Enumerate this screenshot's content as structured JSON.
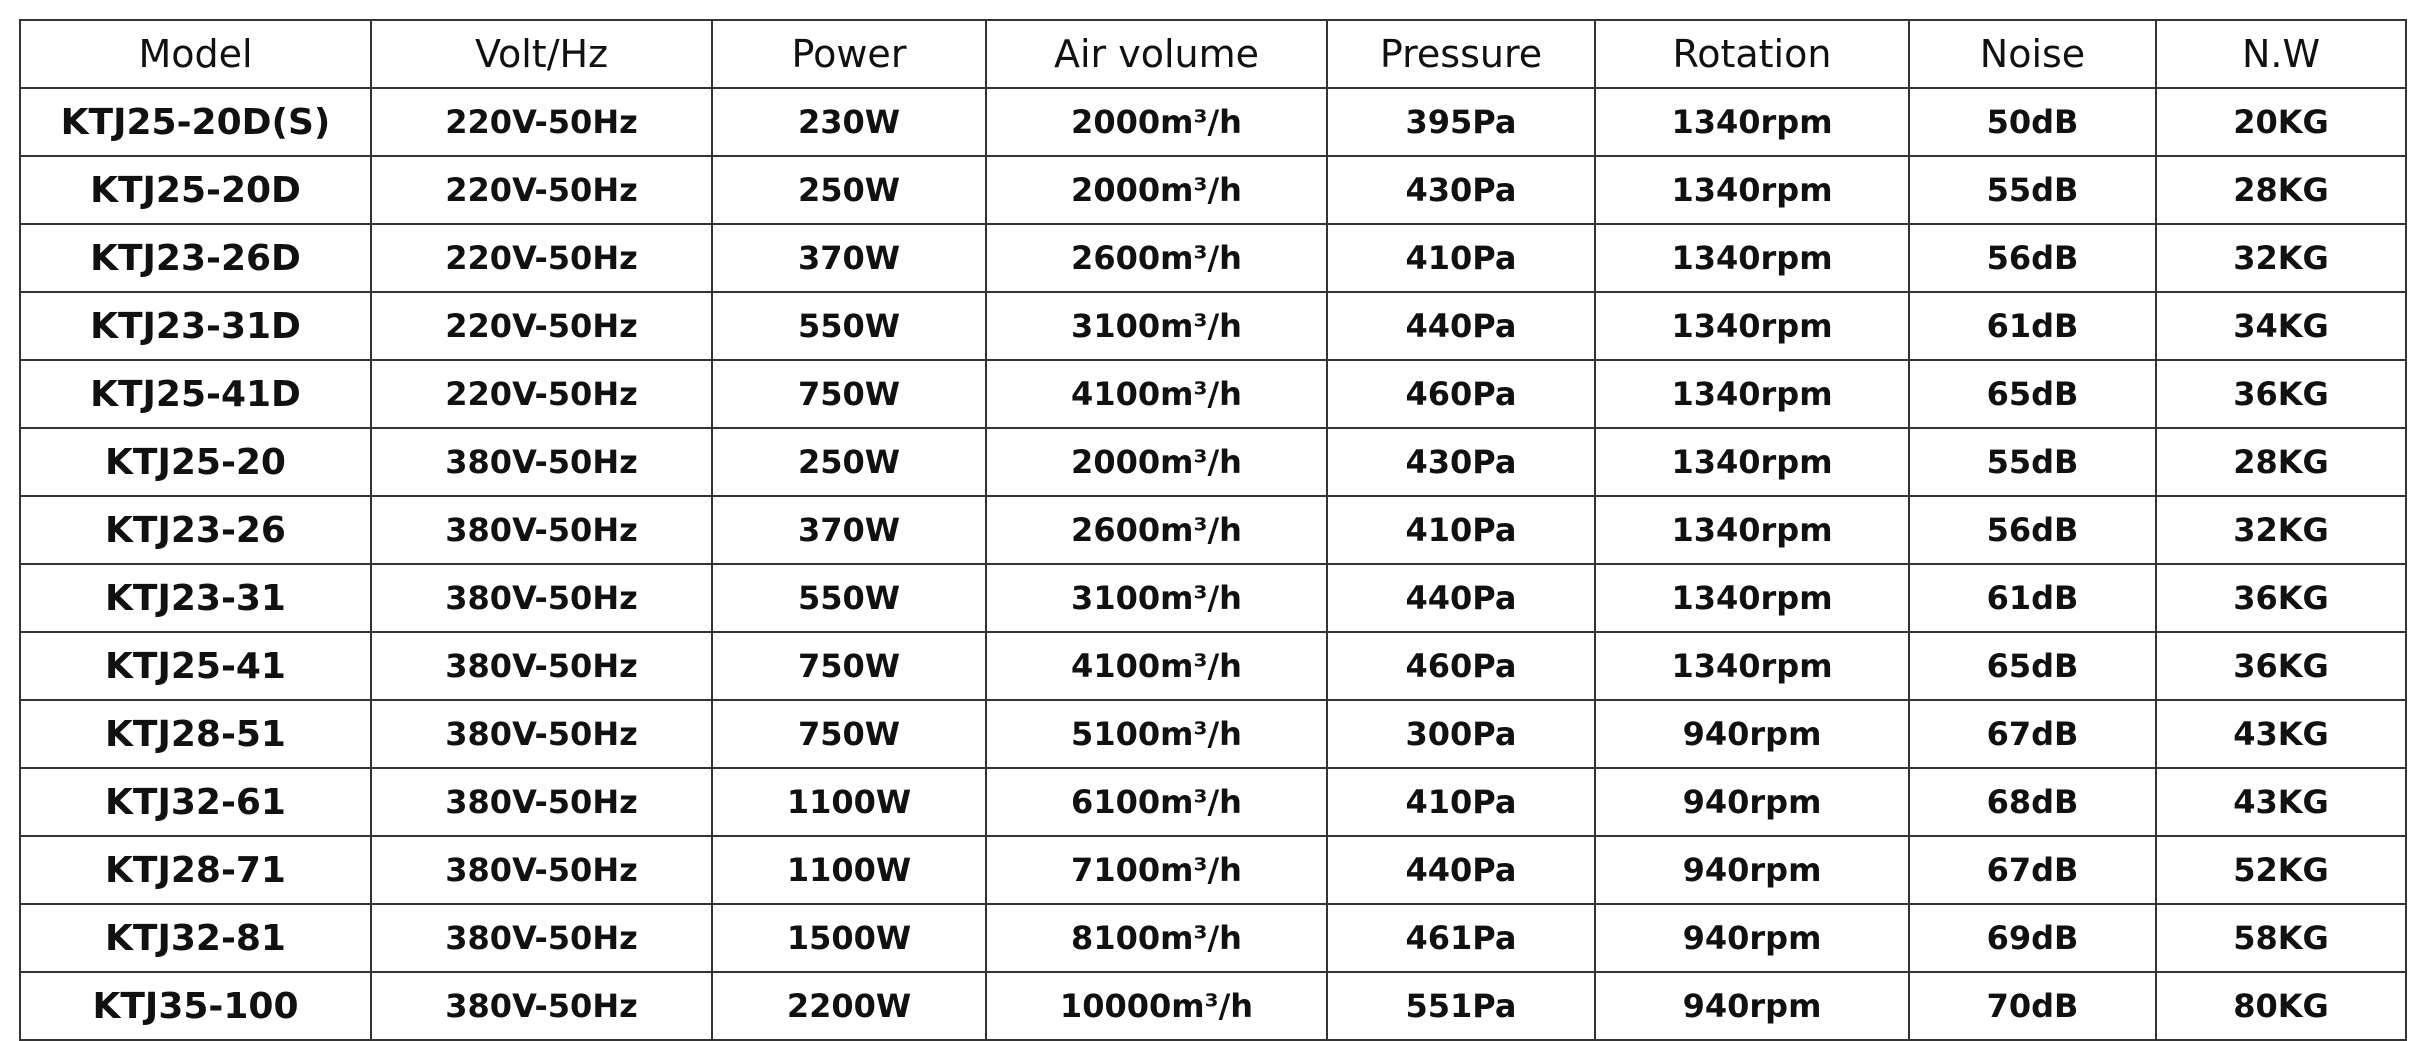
{
  "table": {
    "header": [
      "Model",
      "Volt/Hz",
      "Power",
      "Air volume",
      "Pressure",
      "Rotation",
      "Noise",
      "N.W"
    ],
    "rows": [
      [
        "KTJ25-20D(S)",
        "220V-50Hz",
        "230W",
        "2000m³/h",
        "395Pa",
        "1340rpm",
        "50dB",
        "20KG"
      ],
      [
        "KTJ25-20D",
        "220V-50Hz",
        "250W",
        "2000m³/h",
        "430Pa",
        "1340rpm",
        "55dB",
        "28KG"
      ],
      [
        "KTJ23-26D",
        "220V-50Hz",
        "370W",
        "2600m³/h",
        "410Pa",
        "1340rpm",
        "56dB",
        "32KG"
      ],
      [
        "KTJ23-31D",
        "220V-50Hz",
        "550W",
        "3100m³/h",
        "440Pa",
        "1340rpm",
        "61dB",
        "34KG"
      ],
      [
        "KTJ25-41D",
        "220V-50Hz",
        "750W",
        "4100m³/h",
        "460Pa",
        "1340rpm",
        "65dB",
        "36KG"
      ],
      [
        "KTJ25-20",
        "380V-50Hz",
        "250W",
        "2000m³/h",
        "430Pa",
        "1340rpm",
        "55dB",
        "28KG"
      ],
      [
        "KTJ23-26",
        "380V-50Hz",
        "370W",
        "2600m³/h",
        "410Pa",
        "1340rpm",
        "56dB",
        "32KG"
      ],
      [
        "KTJ23-31",
        "380V-50Hz",
        "550W",
        "3100m³/h",
        "440Pa",
        "1340rpm",
        "61dB",
        "36KG"
      ],
      [
        "KTJ25-41",
        "380V-50Hz",
        "750W",
        "4100m³/h",
        "460Pa",
        "1340rpm",
        "65dB",
        "36KG"
      ],
      [
        "KTJ28-51",
        "380V-50Hz",
        "750W",
        "5100m³/h",
        "300Pa",
        "940rpm",
        "67dB",
        "43KG"
      ],
      [
        "KTJ32-61",
        "380V-50Hz",
        "1100W",
        "6100m³/h",
        "410Pa",
        "940rpm",
        "68dB",
        "43KG"
      ],
      [
        "KTJ28-71",
        "380V-50Hz",
        "1100W",
        "7100m³/h",
        "440Pa",
        "940rpm",
        "67dB",
        "52KG"
      ],
      [
        "KTJ32-81",
        "380V-50Hz",
        "1500W",
        "8100m³/h",
        "461Pa",
        "940rpm",
        "69dB",
        "58KG"
      ],
      [
        "KTJ35-100",
        "380V-50Hz",
        "2200W",
        "10000m³/h",
        "551Pa",
        "940rpm",
        "70dB",
        "80KG"
      ]
    ]
  }
}
